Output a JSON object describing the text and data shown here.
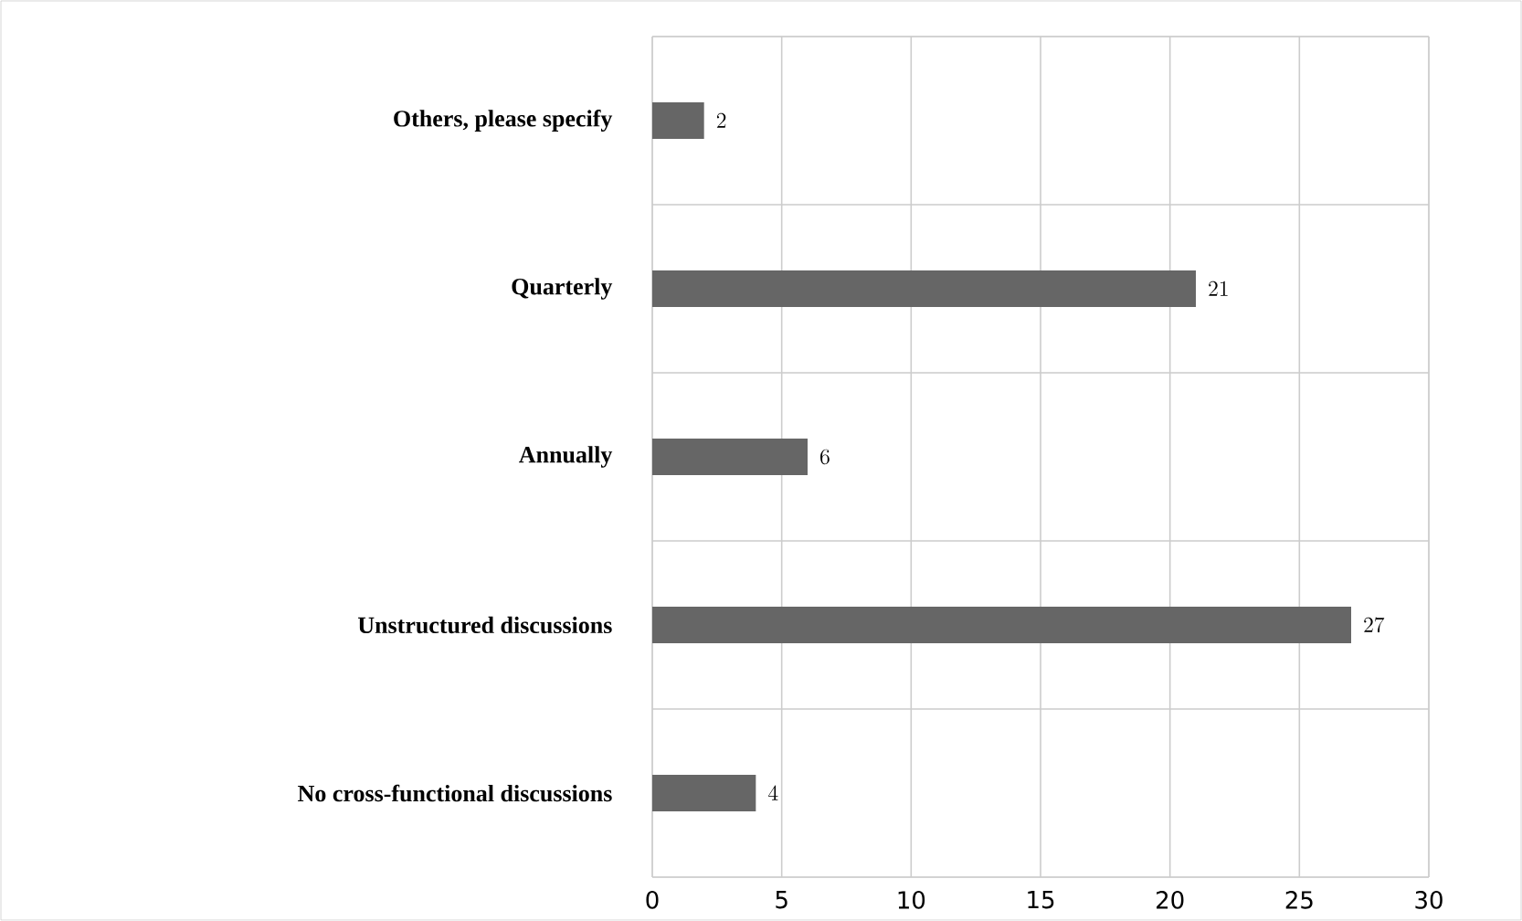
{
  "chart_data": {
    "type": "bar",
    "orientation": "horizontal",
    "categories": [
      "Others, please specify",
      "Quarterly",
      "Annually",
      "Unstructured discussions",
      "No cross-functional discussions"
    ],
    "values": [
      2,
      21,
      6,
      27,
      4
    ],
    "color": "#666666",
    "xlim": [
      0,
      30
    ],
    "xticks": [
      0,
      5,
      10,
      15,
      20,
      25,
      30
    ],
    "grid": true,
    "data_labels": true
  }
}
